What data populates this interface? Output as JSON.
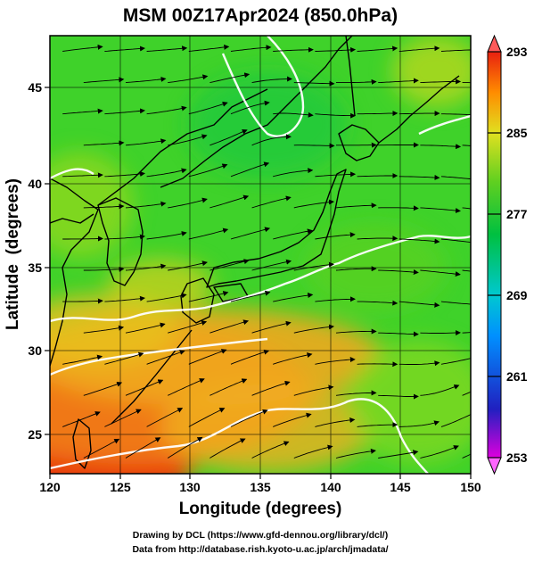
{
  "title": "MSM 00Z17Apr2024 (850.0hPa)",
  "xlabel": "Longitude (degrees)",
  "ylabel": "Latitude  (degrees)",
  "x_ticks": [
    120,
    125,
    130,
    135,
    140,
    145,
    150
  ],
  "y_ticks": [
    25,
    30,
    35,
    40,
    45
  ],
  "colorbar": {
    "ticks": [
      293,
      285,
      277,
      269,
      261,
      253
    ],
    "range": [
      253,
      293
    ],
    "colors": [
      "#dd00dd",
      "#2020c0",
      "#0090ff",
      "#00c8d0",
      "#00c040",
      "#60d020",
      "#e0e020",
      "#ff8c00",
      "#e82010"
    ]
  },
  "footer": {
    "line1": "Drawing by DCL (https://www.gfd-dennou.org/library/dcl/)",
    "line2": "Data from http://database.rish.kyoto-u.ac.jp/arch/jmadata/"
  },
  "map": {
    "lon_range": [
      120,
      150
    ],
    "lat_range": [
      22.4,
      47.6
    ],
    "field": "temperature (K) with wind streamlines",
    "contour_color": "#ffffff"
  }
}
